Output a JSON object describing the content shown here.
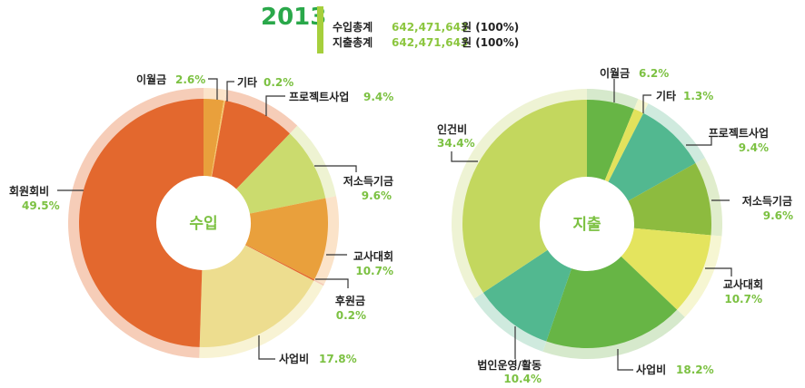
{
  "header": {
    "year": "2013",
    "income_total_label": "수입총계",
    "income_total_value": "642,471,643",
    "income_total_unit": "원 (100%)",
    "expense_total_label": "지출총계",
    "expense_total_value": "642,471,643",
    "expense_total_unit": "원 (100%)",
    "accent_bar_color": "#a6cf3c"
  },
  "chart_data": [
    {
      "type": "pie",
      "variant": "donut",
      "center_label": "수입",
      "unit": "%",
      "slices": [
        {
          "label": "이월금",
          "value": 2.6,
          "display": "2.6%",
          "color": "#e9a03c",
          "ring": "#fbe3c9"
        },
        {
          "label": "기타",
          "value": 0.2,
          "display": "0.2%",
          "color": "#f5c96c",
          "ring": "#fbe3c9"
        },
        {
          "label": "프로젝트사업",
          "value": 9.4,
          "display": "9.4%",
          "color": "#e3682e",
          "ring": "#f6cdb8"
        },
        {
          "label": "저소득기금",
          "value": 9.6,
          "display": "9.6%",
          "color": "#cbdb6e",
          "ring": "#eef3d2"
        },
        {
          "label": "교사대회",
          "value": 10.7,
          "display": "10.7%",
          "color": "#e9a03c",
          "ring": "#fbe3c9"
        },
        {
          "label": "후원금",
          "value": 0.2,
          "display": "0.2%",
          "color": "#e3682e",
          "ring": "#f6cdb8"
        },
        {
          "label": "사업비",
          "value": 17.8,
          "display": "17.8%",
          "color": "#eddd8f",
          "ring": "#f8f3d4"
        },
        {
          "label": "회원회비",
          "value": 49.5,
          "display": "49.5%",
          "color": "#e3682e",
          "ring": "#f6cdb8"
        }
      ]
    },
    {
      "type": "pie",
      "variant": "donut",
      "center_label": "지출",
      "unit": "%",
      "slices": [
        {
          "label": "이월금",
          "value": 6.2,
          "display": "6.2%",
          "color": "#67b545",
          "ring": "#d6e9cc"
        },
        {
          "label": "기타",
          "value": 1.3,
          "display": "1.3%",
          "color": "#e2e25c",
          "ring": "#f5f5cf"
        },
        {
          "label": "프로젝트사업",
          "value": 9.4,
          "display": "9.4%",
          "color": "#52b890",
          "ring": "#cfeade"
        },
        {
          "label": "저소득기금",
          "value": 9.6,
          "display": "9.6%",
          "color": "#8dbb3f",
          "ring": "#e0edcc"
        },
        {
          "label": "교사대회",
          "value": 10.7,
          "display": "10.7%",
          "color": "#e4e45e",
          "ring": "#f6f6d2"
        },
        {
          "label": "사업비",
          "value": 18.2,
          "display": "18.2%",
          "color": "#67b545",
          "ring": "#d6e9cc"
        },
        {
          "label": "법인운영/활동",
          "value": 10.4,
          "display": "10.4%",
          "color": "#52b890",
          "ring": "#cfeade"
        },
        {
          "label": "인건비",
          "value": 34.4,
          "display": "34.4%",
          "color": "#c3d75e",
          "ring": "#eef3d4"
        }
      ]
    }
  ]
}
